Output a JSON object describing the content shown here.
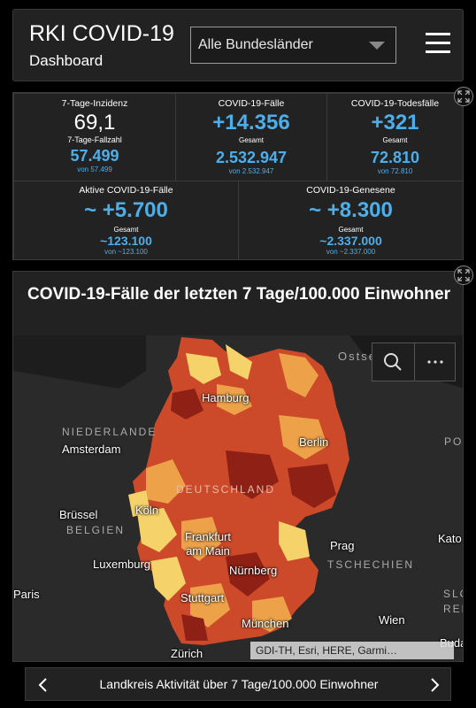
{
  "header": {
    "title": "RKI COVID-19",
    "subtitle": "Dashboard",
    "region_select": "Alle Bundesländer"
  },
  "stats": {
    "incidence": {
      "label": "7-Tage-Inzidenz",
      "value": "69,1",
      "sub_label": "7-Tage-Fallzahl",
      "sub_value": "57.499",
      "sub_note": "von 57.499"
    },
    "cases": {
      "label": "COVID-19-Fälle",
      "value": "+14.356",
      "sub_label": "Gesamt",
      "sub_value": "2.532.947",
      "sub_note": "von 2.532.947"
    },
    "deaths": {
      "label": "COVID-19-Todesfälle",
      "value": "+321",
      "sub_label": "Gesamt",
      "sub_value": "72.810",
      "sub_note": "von 72.810"
    },
    "active": {
      "label": "Aktive COVID-19-Fälle",
      "value": "~ +5.700",
      "sub_label": "Gesamt",
      "sub_value": "~123.100",
      "sub_note": "von ~123.100"
    },
    "recovered": {
      "label": "COVID-19-Genesene",
      "value": "~ +8.300",
      "sub_label": "Gesamt",
      "sub_value": "~2.337.000",
      "sub_note": "von ~2.337.000"
    }
  },
  "map": {
    "title": "COVID-19-Fälle der letzten 7 Tage/100.000 Einwohner",
    "places": [
      "Hamburg",
      "Berlin",
      "Amsterdam",
      "Köln",
      "Frankfurt am Main",
      "Brüssel",
      "Luxemburg",
      "Prag",
      "Nürnberg",
      "Stuttgart",
      "Paris",
      "München",
      "Wien",
      "Zürich",
      "Kato",
      "Buda"
    ],
    "countries": [
      "NIEDERLANDE",
      "DEUTSCHLAND",
      "BELGIEN",
      "TSCHECHIEN",
      "SLOWA",
      "REP",
      "PO",
      "Ostse"
    ],
    "attribution": "GDI-TH, Esri, HERE, Garmi…",
    "colors": {
      "low": "#f6d36a",
      "mid": "#eda24a",
      "high": "#cc4a2a",
      "very_high": "#8f2016"
    }
  },
  "footer": {
    "label": "Landkreis Aktivität über 7 Tage/100.000 Einwohner"
  }
}
